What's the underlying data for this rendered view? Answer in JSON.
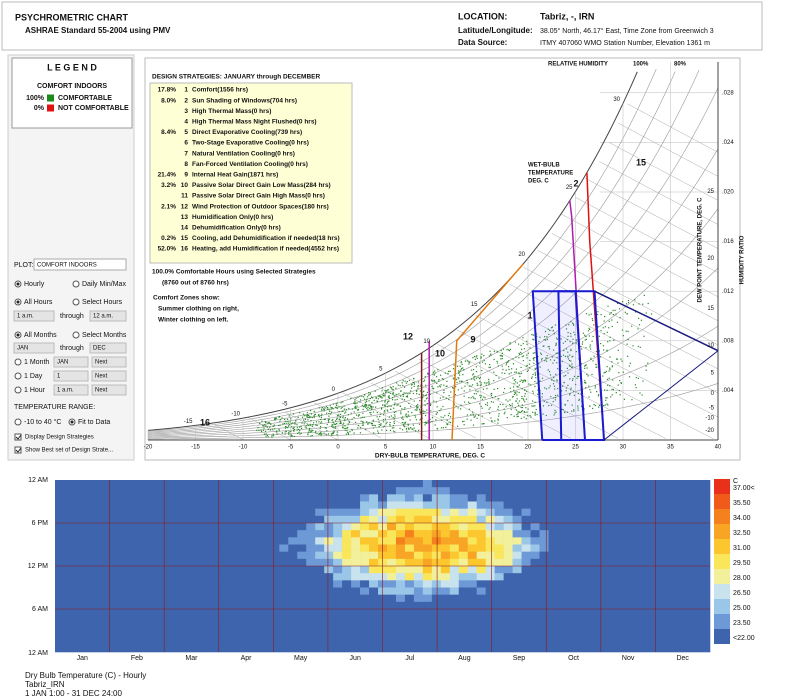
{
  "header": {
    "title": "PSYCHROMETRIC CHART",
    "subtitle": "ASHRAE Standard 55-2004 using PMV",
    "location_label": "LOCATION:",
    "location": "Tabriz, -, IRN",
    "latlon_label": "Latitude/Longitude:",
    "latlon": "38.05° North, 46.17° East, Time Zone from Greenwich 3",
    "source_label": "Data Source:",
    "source": "ITMY     407060 WMO Station Number, Elevation 1361 m"
  },
  "legend": {
    "title": "L E G E N D",
    "subtitle": "COMFORT INDOORS",
    "items": [
      {
        "pct": "100%",
        "label": "COMFORTABLE",
        "color": "#1a8a1a"
      },
      {
        "pct": "0%",
        "label": "NOT COMFORTABLE",
        "color": "#e01010"
      }
    ]
  },
  "controls": {
    "plot_label": "PLOT:",
    "plot_value": "COMFORT INDOORS",
    "modes": [
      "Hourly",
      "Daily Min/Max"
    ],
    "hours": [
      "All Hours",
      "Select Hours"
    ],
    "hour_from": "1 a.m.",
    "through": "through",
    "hour_to": "12 a.m.",
    "months": [
      "All Months",
      "Select Months"
    ],
    "month_from": "JAN",
    "month_to": "DEC",
    "singles": [
      {
        "label": "1 Month",
        "value": "JAN",
        "next": "Next"
      },
      {
        "label": "1 Day",
        "value": "1",
        "next": "Next"
      },
      {
        "label": "1 Hour",
        "value": "1 a.m.",
        "next": "Next"
      }
    ],
    "temp_title": "TEMPERATURE RANGE:",
    "temp_options": [
      "-10 to 40 °C",
      "Fit to Data"
    ],
    "checks": [
      "Display Design Strategies",
      "Show Best set of Design Strate..."
    ]
  },
  "psych": {
    "strategies_title": "DESIGN STRATEGIES:  JANUARY through DECEMBER",
    "strategies": [
      {
        "pct": "17.8%",
        "num": "1",
        "label": "Comfort(1556 hrs)",
        "color": "#1a1aa0"
      },
      {
        "pct": "8.0%",
        "num": "2",
        "label": "Sun Shading of Windows(704 hrs)",
        "color": "#9a1aa0"
      },
      {
        "num": "3",
        "label": "High Thermal Mass(0 hrs)",
        "color": "#e07a10"
      },
      {
        "num": "4",
        "label": "High Thermal Mass Night Flushed(0 hrs)",
        "color": "#e07a10"
      },
      {
        "pct": "8.4%",
        "num": "5",
        "label": "Direct Evaporative Cooling(739 hrs)",
        "color": "#1a1aa0"
      },
      {
        "num": "6",
        "label": "Two-Stage Evaporative Cooling(0 hrs)",
        "color": "#1a1aa0"
      },
      {
        "num": "7",
        "label": "Natural Ventilation Cooling(0 hrs)",
        "color": "#1a7a1a"
      },
      {
        "num": "8",
        "label": "Fan-Forced Ventilation Cooling(0 hrs)",
        "color": "#1a7a1a"
      },
      {
        "pct": "21.4%",
        "num": "9",
        "label": "Internal Heat Gain(1871 hrs)",
        "color": "#e07a10"
      },
      {
        "pct": "3.2%",
        "num": "10",
        "label": "Passive Solar Direct Gain Low Mass(284 hrs)",
        "color": "#b01ab0"
      },
      {
        "num": "11",
        "label": "Passive Solar Direct Gain High Mass(0 hrs)",
        "color": "#b01ab0"
      },
      {
        "pct": "2.1%",
        "num": "12",
        "label": "Wind Protection of Outdoor Spaces(180 hrs)",
        "color": "#7a1a1a"
      },
      {
        "num": "13",
        "label": "Humidification Only(0 hrs)",
        "color": "#10a0c0"
      },
      {
        "num": "14",
        "label": "Dehumidification Only(0 hrs)",
        "color": "#10a0c0"
      },
      {
        "pct": "0.2%",
        "num": "15",
        "label": "Cooling, add Dehumidification if needed(18 hrs)",
        "color": "#e01010"
      },
      {
        "pct": "52.0%",
        "num": "16",
        "label": "Heating, add Humidification if needed(4552 hrs)",
        "color": "#e01010"
      }
    ],
    "summary": "100.0%  Comfortable Hours using Selected Strategies",
    "summary_hrs": "(8760 out of 8760 hrs)",
    "zones_note": [
      "Comfort Zones show:",
      "Summer clothing on right,",
      "Winter clothing on left."
    ],
    "rh_title": "RELATIVE HUMIDITY",
    "rh_marks": [
      "100%",
      "80%"
    ],
    "wetbulb_title": [
      "WET-BULB",
      "TEMPERATURE",
      "DEG. C"
    ],
    "dewpoint_title": "DEW POINT TEMPERATURE, DEG. C",
    "humidity_title": "HUMIDITY RATIO",
    "x_title": "DRY-BULB TEMPERATURE, DEG. C",
    "x_ticks": [
      -20,
      -15,
      -10,
      -5,
      0,
      5,
      10,
      15,
      20,
      25,
      30,
      35,
      40
    ],
    "w_ticks": [
      {
        "value": 0.028,
        "label": ".028"
      },
      {
        "value": 0.024,
        "label": ".024"
      },
      {
        "value": 0.02,
        "label": ".020"
      },
      {
        "value": 0.016,
        "label": ".016"
      },
      {
        "value": 0.012,
        "label": ".012"
      },
      {
        "value": 0.008,
        "label": ".008"
      },
      {
        "value": 0.004,
        "label": ".004"
      }
    ],
    "dew_ticks": [
      25,
      20,
      15,
      10,
      5,
      0,
      -5,
      -10,
      -20
    ],
    "wb_ticks": [
      -15,
      -10,
      -5,
      0,
      5,
      10,
      15,
      20,
      25,
      30
    ],
    "zone_labels": [
      "15",
      "16",
      "12",
      "2",
      "1",
      "9",
      "10"
    ]
  },
  "heatmap": {
    "y_labels": [
      "12 AM",
      "6 PM",
      "12 PM",
      "6 AM",
      "12 AM"
    ],
    "months": [
      "Jan",
      "Feb",
      "Mar",
      "Apr",
      "May",
      "Jun",
      "Jul",
      "Aug",
      "Sep",
      "Oct",
      "Nov",
      "Dec"
    ],
    "unit": "C",
    "scale": [
      {
        "value": 37,
        "label": "37.00<",
        "color": "#e8301a"
      },
      {
        "value": 35.5,
        "label": "35.50",
        "color": "#f05a1a"
      },
      {
        "value": 34,
        "label": "34.00",
        "color": "#f5801e"
      },
      {
        "value": 32.5,
        "label": "32.50",
        "color": "#f8a424"
      },
      {
        "value": 31,
        "label": "31.00",
        "color": "#fbc62e"
      },
      {
        "value": 29.5,
        "label": "29.50",
        "color": "#fae65a"
      },
      {
        "value": 28,
        "label": "28.00",
        "color": "#f2f09a"
      },
      {
        "value": 26.5,
        "label": "26.50",
        "color": "#c8e2ee"
      },
      {
        "value": 25,
        "label": "25.00",
        "color": "#9ac6e8"
      },
      {
        "value": 23.5,
        "label": "23.50",
        "color": "#6d9ad6"
      },
      {
        "value": 22,
        "label": "<22.00",
        "color": "#3f64ae"
      }
    ],
    "caption": [
      "Dry Bulb Temperature (C) - Hourly",
      "Tabriz_IRN",
      "1 JAN 1:00 - 31 DEC 24:00"
    ]
  }
}
